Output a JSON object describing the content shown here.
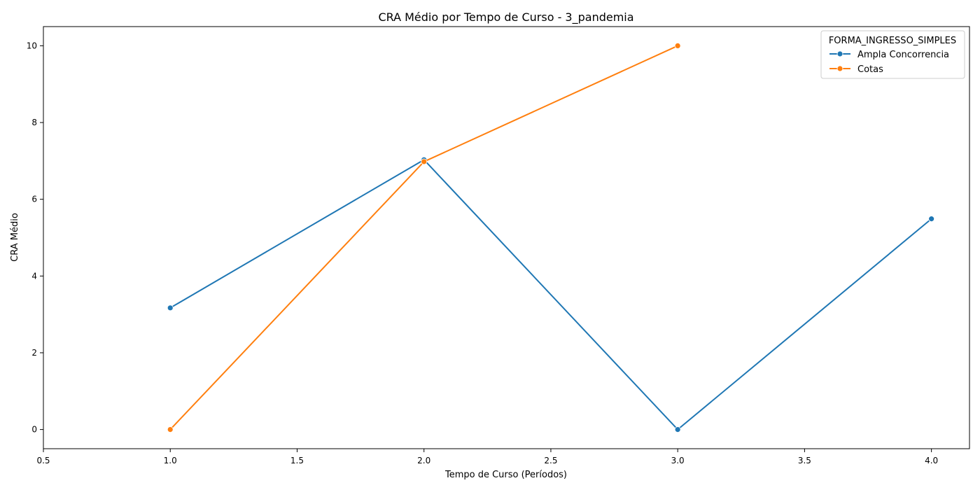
{
  "chart_data": {
    "type": "line",
    "title": "CRA Médio por Tempo de Curso - 3_pandemia",
    "xlabel": "Tempo de Curso (Períodos)",
    "ylabel": "CRA Médio",
    "xlim": [
      0.5,
      4.15
    ],
    "ylim": [
      -0.5,
      10.5
    ],
    "xticks": [
      "0.5",
      "1.0",
      "1.5",
      "2.0",
      "2.5",
      "3.0",
      "3.5",
      "4.0"
    ],
    "yticks": [
      "0",
      "2",
      "4",
      "6",
      "8",
      "10"
    ],
    "grid": false,
    "legend": {
      "title": "FORMA_INGRESSO_SIMPLES",
      "placement": "top-right"
    },
    "series": [
      {
        "name": "Ampla Concorrencia",
        "color": "#1f77b4",
        "x": [
          1.0,
          2.0,
          3.0,
          4.0
        ],
        "y": [
          3.17,
          7.03,
          0.0,
          5.49
        ]
      },
      {
        "name": "Cotas",
        "color": "#ff7f0e",
        "x": [
          1.0,
          2.0,
          3.0
        ],
        "y": [
          0.0,
          6.98,
          10.0
        ]
      }
    ]
  }
}
